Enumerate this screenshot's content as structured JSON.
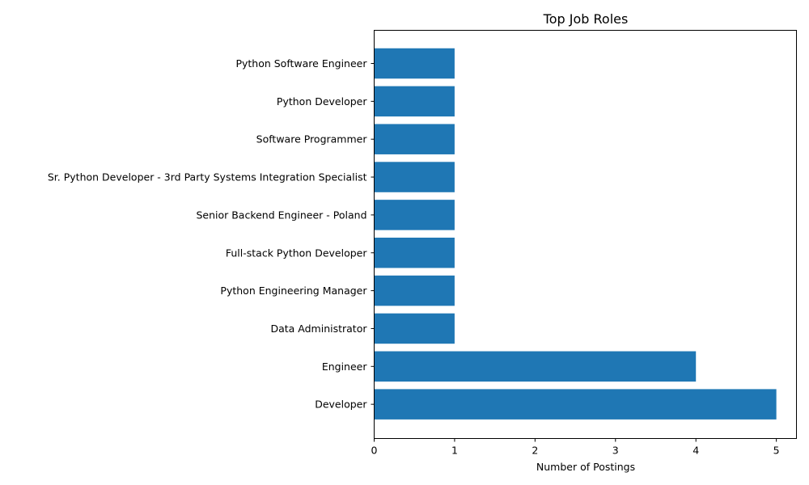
{
  "chart_data": {
    "type": "bar",
    "orientation": "horizontal",
    "title": "Top Job Roles",
    "xlabel": "Number of Postings",
    "ylabel": "",
    "xlim": [
      0,
      5.25
    ],
    "xticks": [
      "0",
      "1",
      "2",
      "3",
      "4",
      "5"
    ],
    "grid": false,
    "bar_color": "#1f77b4",
    "categories": [
      "Python Software Engineer",
      "Python Developer",
      "Software Programmer",
      "Sr. Python Developer - 3rd Party Systems Integration Specialist",
      "Senior Backend Engineer - Poland",
      "Full-stack Python Developer",
      "Python Engineering Manager",
      "Data Administrator",
      "Engineer",
      "Developer"
    ],
    "values": [
      1,
      1,
      1,
      1,
      1,
      1,
      1,
      1,
      4,
      5
    ]
  }
}
